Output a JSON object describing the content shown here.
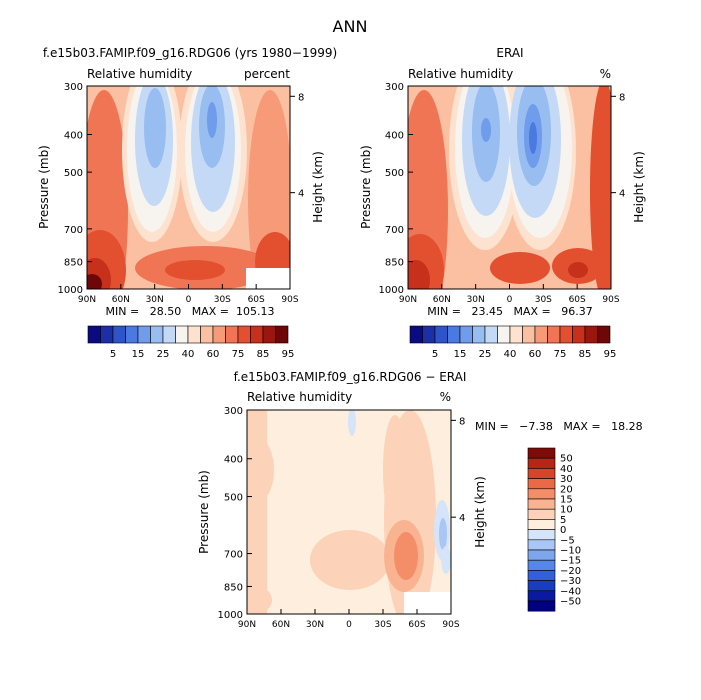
{
  "page_title": "ANN",
  "chart_data": [
    {
      "type": "heatmap",
      "title": "f.e15b03.FAMIP.f09_g16.RDG06 (yrs 1980−1999)",
      "subtitle_left": "Relative humidity",
      "subtitle_right": "percent",
      "xlabel": "",
      "ylabel": "Pressure (mb)",
      "ylabel_right": "Height (km)",
      "x_ticks": [
        "90N",
        "60N",
        "30N",
        "0",
        "30S",
        "60S",
        "90S"
      ],
      "y_ticks": [
        "300",
        "400",
        "500",
        "700",
        "850",
        "1000"
      ],
      "height_ticks": [
        "8",
        "4"
      ],
      "xlim": [
        90,
        -90
      ],
      "ylim": [
        1000,
        300
      ],
      "y_scale": "log",
      "min_max_label": "MIN =   28.50   MAX =  105.13",
      "min": 28.5,
      "max": 105.13,
      "colorbar": {
        "orientation": "horizontal",
        "tick_labels": [
          "5",
          "15",
          "25",
          "40",
          "60",
          "75",
          "85",
          "95"
        ]
      }
    },
    {
      "type": "heatmap",
      "title": "ERAI",
      "subtitle_left": "Relative humidity",
      "subtitle_right": "%",
      "xlabel": "",
      "ylabel": "Pressure (mb)",
      "ylabel_right": "Height (km)",
      "x_ticks": [
        "90N",
        "60N",
        "30N",
        "0",
        "30S",
        "60S",
        "90S"
      ],
      "y_ticks": [
        "300",
        "400",
        "500",
        "700",
        "850",
        "1000"
      ],
      "height_ticks": [
        "8",
        "4"
      ],
      "xlim": [
        90,
        -90
      ],
      "ylim": [
        1000,
        300
      ],
      "y_scale": "log",
      "min_max_label": "MIN =   23.45   MAX =   96.37",
      "min": 23.45,
      "max": 96.37,
      "colorbar": {
        "orientation": "horizontal",
        "tick_labels": [
          "5",
          "15",
          "25",
          "40",
          "60",
          "75",
          "85",
          "95"
        ]
      }
    },
    {
      "type": "heatmap",
      "title": "f.e15b03.FAMIP.f09_g16.RDG06 − ERAI",
      "subtitle_left": "Relative humidity",
      "subtitle_right": "%",
      "xlabel": "",
      "ylabel": "Pressure (mb)",
      "ylabel_right": "Height (km)",
      "x_ticks": [
        "90N",
        "60N",
        "30N",
        "0",
        "30S",
        "60S",
        "90S"
      ],
      "y_ticks": [
        "300",
        "400",
        "500",
        "700",
        "850",
        "1000"
      ],
      "height_ticks": [
        "8",
        "4"
      ],
      "xlim": [
        90,
        -90
      ],
      "ylim": [
        1000,
        300
      ],
      "y_scale": "log",
      "min_max_label": "MIN =   −7.38   MAX =   18.28",
      "min": -7.38,
      "max": 18.28,
      "colorbar": {
        "orientation": "vertical",
        "tick_labels": [
          "50",
          "40",
          "30",
          "20",
          "15",
          "10",
          "5",
          "0",
          "−5",
          "−10",
          "−15",
          "−20",
          "−30",
          "−40",
          "−50"
        ]
      }
    }
  ],
  "colors": {
    "abs_scale": [
      "#0a0a82",
      "#1c2fa6",
      "#2d55c8",
      "#4a7ae0",
      "#6f9ceb",
      "#98bdf1",
      "#c4d9f6",
      "#f7f3ee",
      "#fde2cf",
      "#fbc0a2",
      "#f79a78",
      "#f07555",
      "#e2502f",
      "#c7301b",
      "#9c1610",
      "#6e0707"
    ],
    "diff_scale": [
      "#000080",
      "#0a1aa0",
      "#1a3dc0",
      "#3360da",
      "#5586e8",
      "#7ea6ef",
      "#a9c6f4",
      "#d5e4f8",
      "#fdeedd",
      "#fcd3b8",
      "#f9b391",
      "#f48e68",
      "#ea6a45",
      "#d54527",
      "#b42615",
      "#7d0b08"
    ]
  }
}
